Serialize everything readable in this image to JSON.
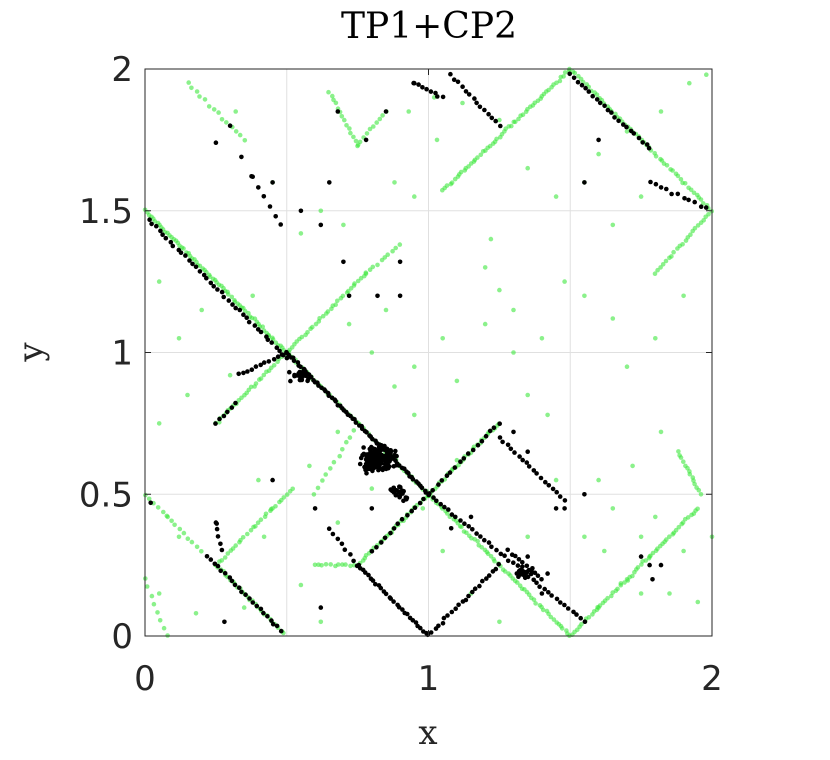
{
  "chart_data": {
    "type": "scatter",
    "title": "TP1+CP2",
    "xlabel": "x",
    "ylabel": "y",
    "xlim": [
      0,
      2
    ],
    "ylim": [
      0,
      2
    ],
    "x_ticks": [
      "0",
      "1",
      "2"
    ],
    "y_ticks": [
      "0",
      "0.5",
      "1",
      "1.5",
      "2"
    ],
    "x_tick_values": [
      0,
      1,
      2
    ],
    "y_tick_values": [
      0,
      0.5,
      1,
      1.5,
      2
    ],
    "x_grid_values": [
      0.5,
      1,
      1.5
    ],
    "y_grid_values": [
      0.5,
      1,
      1.5
    ],
    "grid": true,
    "series": [
      {
        "color": "#3ee83e",
        "opacity": 0.6,
        "segments": [
          [
            [
              0,
              1.5
            ],
            [
              0.5,
              1.0
            ],
            70
          ],
          [
            [
              0.5,
              1.0
            ],
            [
              1.0,
              0.5
            ],
            60
          ],
          [
            [
              1.0,
              0.5
            ],
            [
              1.5,
              0.0
            ],
            60
          ],
          [
            [
              0.25,
              0.75
            ],
            [
              0.78,
              1.28
            ],
            60
          ],
          [
            [
              0.78,
              1.28
            ],
            [
              0.9,
              1.38
            ],
            10
          ],
          [
            [
              0.6,
              0.25
            ],
            [
              0.75,
              0.25
            ],
            12
          ],
          [
            [
              0.75,
              0.25
            ],
            [
              1.25,
              0.75
            ],
            60
          ],
          [
            [
              1.5,
              0.0
            ],
            [
              1.95,
              0.45
            ],
            55
          ],
          [
            [
              1.88,
              0.65
            ],
            [
              1.96,
              0.5
            ],
            14
          ],
          [
            [
              1.05,
              1.57
            ],
            [
              1.5,
              2.0
            ],
            55
          ],
          [
            [
              1.5,
              2.0
            ],
            [
              2.0,
              1.5
            ],
            55
          ],
          [
            [
              1.8,
              1.28
            ],
            [
              2.0,
              1.5
            ],
            22
          ],
          [
            [
              0.25,
              0.25
            ],
            [
              0.5,
              0.0
            ],
            30
          ],
          [
            [
              0.25,
              0.25
            ],
            [
              0.52,
              0.52
            ],
            28
          ],
          [
            [
              0.65,
              1.92
            ],
            [
              0.75,
              1.73
            ],
            14
          ],
          [
            [
              0.75,
              1.73
            ],
            [
              0.85,
              1.85
            ],
            10
          ],
          [
            [
              0.6,
              0.5
            ],
            [
              0.75,
              0.75
            ],
            12
          ],
          [
            [
              0.0,
              0.5
            ],
            [
              0.2,
              0.3
            ],
            14
          ],
          [
            [
              0.0,
              0.2
            ],
            [
              0.08,
              0.0
            ],
            8
          ],
          [
            [
              0.15,
              1.95
            ],
            [
              0.35,
              1.75
            ],
            14
          ]
        ],
        "points": [
          [
            0.32,
            1.85
          ],
          [
            0.45,
            1.6
          ],
          [
            0.55,
            1.42
          ],
          [
            0.62,
            1.5
          ],
          [
            0.7,
            1.45
          ],
          [
            0.88,
            1.6
          ],
          [
            0.93,
            1.85
          ],
          [
            1.02,
            1.9
          ],
          [
            1.12,
            1.88
          ],
          [
            1.25,
            1.82
          ],
          [
            1.6,
            1.7
          ],
          [
            1.7,
            1.78
          ],
          [
            1.82,
            1.85
          ],
          [
            1.92,
            1.95
          ],
          [
            1.98,
            1.98
          ],
          [
            1.55,
            1.6
          ],
          [
            1.45,
            1.55
          ],
          [
            1.65,
            1.45
          ],
          [
            1.75,
            1.55
          ],
          [
            1.35,
            1.65
          ],
          [
            1.2,
            1.3
          ],
          [
            1.25,
            1.22
          ],
          [
            1.3,
            1.15
          ],
          [
            1.22,
            1.4
          ],
          [
            1.48,
            1.25
          ],
          [
            1.55,
            1.2
          ],
          [
            1.65,
            1.12
          ],
          [
            1.7,
            0.95
          ],
          [
            1.8,
            1.05
          ],
          [
            1.9,
            1.2
          ],
          [
            1.05,
            1.05
          ],
          [
            0.95,
            0.95
          ],
          [
            1.1,
            0.9
          ],
          [
            0.88,
            0.88
          ],
          [
            1.35,
            0.85
          ],
          [
            1.42,
            0.78
          ],
          [
            1.6,
            0.55
          ],
          [
            1.65,
            0.45
          ],
          [
            1.75,
            0.35
          ],
          [
            1.8,
            0.42
          ],
          [
            1.7,
            0.2
          ],
          [
            1.6,
            0.1
          ],
          [
            1.85,
            0.15
          ],
          [
            1.95,
            0.12
          ],
          [
            2.0,
            0.35
          ],
          [
            1.72,
            0.6
          ],
          [
            1.82,
            0.72
          ],
          [
            1.55,
            0.35
          ],
          [
            0.08,
            0.42
          ],
          [
            0.12,
            0.35
          ],
          [
            0.05,
            0.15
          ],
          [
            0.18,
            0.08
          ],
          [
            0.35,
            0.1
          ],
          [
            0.42,
            0.35
          ],
          [
            0.55,
            0.18
          ],
          [
            0.62,
            0.05
          ],
          [
            0.68,
            0.4
          ],
          [
            0.4,
            0.55
          ],
          [
            0.45,
            0.45
          ],
          [
            0.58,
            0.6
          ],
          [
            0.05,
            0.75
          ],
          [
            0.15,
            0.85
          ],
          [
            0.12,
            1.05
          ],
          [
            0.05,
            1.25
          ],
          [
            0.2,
            1.15
          ],
          [
            0.3,
            0.92
          ],
          [
            0.38,
            1.2
          ],
          [
            0.95,
            1.55
          ],
          [
            1.03,
            1.75
          ],
          [
            0.98,
            0.45
          ],
          [
            1.05,
            0.3
          ],
          [
            1.15,
            0.15
          ],
          [
            1.25,
            0.05
          ],
          [
            1.35,
            0.35
          ],
          [
            1.45,
            0.55
          ],
          [
            0.8,
            0.52
          ],
          [
            0.68,
            0.72
          ],
          [
            0.62,
            0.88
          ],
          [
            0.95,
            0.78
          ],
          [
            1.1,
            0.62
          ],
          [
            1.3,
            1.0
          ],
          [
            1.4,
            1.05
          ],
          [
            0.8,
            1.0
          ],
          [
            0.72,
            1.1
          ],
          [
            0.85,
            1.15
          ],
          [
            1.2,
            1.1
          ],
          [
            1.62,
            0.3
          ],
          [
            1.75,
            0.15
          ],
          [
            1.78,
            0.28
          ],
          [
            1.9,
            0.3
          ]
        ]
      },
      {
        "color": "#000000",
        "opacity": 1,
        "segments": [
          [
            [
              0.0,
              1.48
            ],
            [
              0.5,
              0.98
            ],
            40
          ],
          [
            [
              0.5,
              1.0
            ],
            [
              1.0,
              0.5
            ],
            70
          ],
          [
            [
              1.0,
              0.5
            ],
            [
              1.55,
              0.05
            ],
            40
          ],
          [
            [
              0.75,
              0.25
            ],
            [
              1.0,
              0.0
            ],
            28
          ],
          [
            [
              0.65,
              0.38
            ],
            [
              0.75,
              0.25
            ],
            8
          ],
          [
            [
              1.0,
              0.0
            ],
            [
              1.25,
              0.25
            ],
            22
          ],
          [
            [
              0.8,
              0.3
            ],
            [
              1.25,
              0.75
            ],
            30
          ],
          [
            [
              1.25,
              0.7
            ],
            [
              1.48,
              0.48
            ],
            18
          ],
          [
            [
              1.08,
              1.98
            ],
            [
              1.25,
              1.8
            ],
            14
          ],
          [
            [
              1.5,
              1.98
            ],
            [
              1.78,
              1.72
            ],
            22
          ],
          [
            [
              1.78,
              1.6
            ],
            [
              2.0,
              1.5
            ],
            12
          ],
          [
            [
              0.22,
              0.28
            ],
            [
              0.48,
              0.02
            ],
            22
          ],
          [
            [
              0.95,
              1.95
            ],
            [
              1.05,
              1.9
            ],
            8
          ],
          [
            [
              0.38,
              1.62
            ],
            [
              0.48,
              1.45
            ],
            6
          ],
          [
            [
              0.33,
              0.92
            ],
            [
              0.5,
              1.0
            ],
            12
          ],
          [
            [
              0.25,
              0.75
            ],
            [
              0.32,
              0.82
            ],
            6
          ],
          [
            [
              1.28,
              0.3
            ],
            [
              1.4,
              0.2
            ],
            10
          ],
          [
            [
              0.25,
              0.4
            ],
            [
              0.27,
              0.3
            ],
            5
          ]
        ],
        "clusters": [
          [
            0.82,
            0.63,
            0.08,
            0.07,
            150
          ],
          [
            0.55,
            0.92,
            0.05,
            0.04,
            24
          ],
          [
            0.9,
            0.5,
            0.06,
            0.05,
            24
          ],
          [
            1.33,
            0.22,
            0.05,
            0.03,
            18
          ]
        ],
        "points": [
          [
            0.02,
            0.47
          ],
          [
            0.25,
            1.74
          ],
          [
            0.3,
            1.8
          ],
          [
            0.34,
            1.69
          ],
          [
            0.38,
            1.62
          ],
          [
            0.45,
            1.6
          ],
          [
            0.55,
            1.5
          ],
          [
            0.65,
            1.6
          ],
          [
            0.7,
            1.32
          ],
          [
            0.72,
            1.2
          ],
          [
            0.82,
            1.2
          ],
          [
            0.9,
            1.2
          ],
          [
            0.9,
            1.32
          ],
          [
            0.62,
            1.45
          ],
          [
            0.95,
            1.95
          ],
          [
            0.85,
            1.85
          ],
          [
            0.78,
            1.75
          ],
          [
            0.68,
            1.85
          ],
          [
            1.55,
            1.6
          ],
          [
            1.6,
            1.75
          ],
          [
            1.75,
            0.28
          ],
          [
            1.78,
            0.25
          ],
          [
            1.79,
            0.2
          ],
          [
            1.82,
            0.25
          ],
          [
            1.55,
            0.5
          ],
          [
            1.45,
            0.45
          ],
          [
            1.3,
            0.72
          ],
          [
            1.35,
            0.65
          ],
          [
            0.6,
            0.45
          ],
          [
            0.62,
            0.1
          ],
          [
            0.28,
            0.05
          ],
          [
            0.25,
            0.4
          ],
          [
            0.45,
            0.55
          ],
          [
            0.8,
            0.45
          ],
          [
            1.15,
            0.42
          ],
          [
            1.08,
            0.38
          ],
          [
            1.48,
            0.45
          ],
          [
            1.35,
            0.28
          ],
          [
            1.42,
            0.22
          ],
          [
            1.4,
            0.15
          ]
        ]
      }
    ]
  }
}
